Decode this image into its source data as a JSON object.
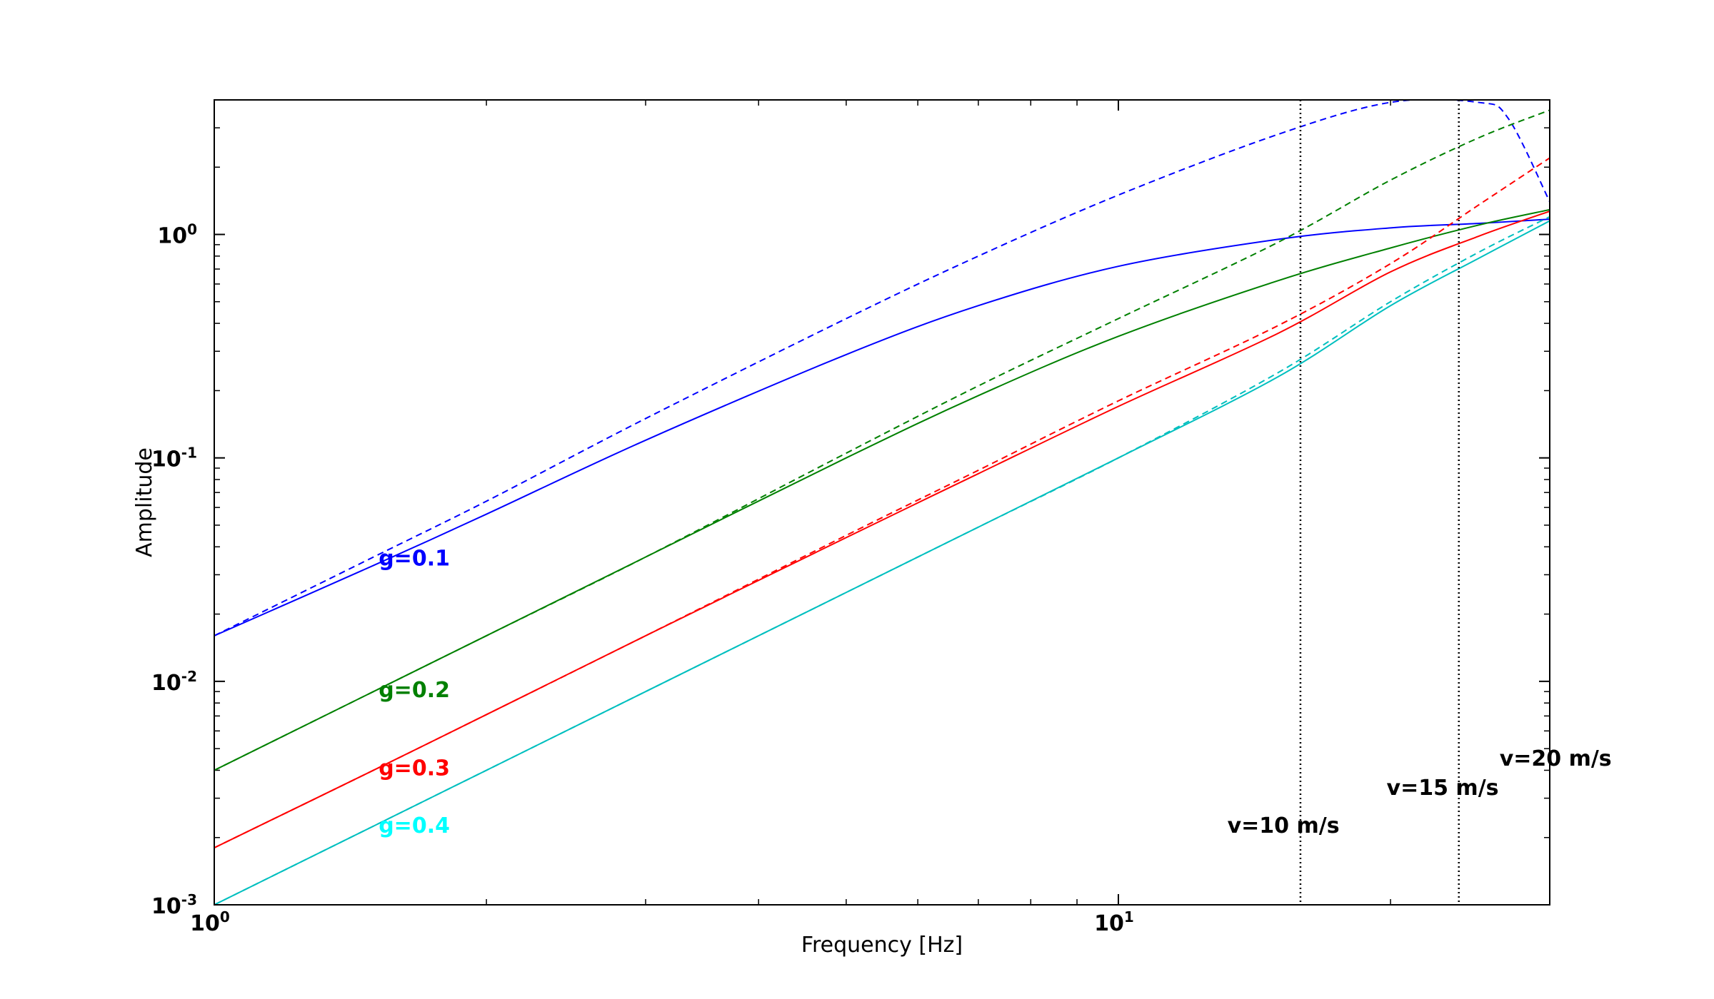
{
  "chart_data": {
    "type": "line",
    "title": "",
    "xlabel": "Frequency [Hz]",
    "ylabel": "Amplitude",
    "xscale": "log",
    "yscale": "log",
    "xlim": [
      1,
      30
    ],
    "ylim": [
      0.001,
      4
    ],
    "grid": false,
    "legend": "none",
    "x_ticks": [
      {
        "value": 1,
        "base": "10",
        "exp": "0"
      },
      {
        "value": 10,
        "base": "10",
        "exp": "1"
      }
    ],
    "y_ticks": [
      {
        "value": 0.001,
        "base": "10",
        "exp": "-3"
      },
      {
        "value": 0.01,
        "base": "10",
        "exp": "-2"
      },
      {
        "value": 0.1,
        "base": "10",
        "exp": "-1"
      },
      {
        "value": 1,
        "base": "10",
        "exp": "0"
      }
    ],
    "series": [
      {
        "label": "g=0.1",
        "color": "#0000ff",
        "label_at": [
          1.52,
          0.033
        ],
        "solid": {
          "x": [
            1,
            1.5,
            2,
            3,
            5,
            7,
            10,
            15,
            20,
            25,
            30
          ],
          "y": [
            0.016,
            0.033,
            0.056,
            0.12,
            0.29,
            0.48,
            0.72,
            0.95,
            1.07,
            1.12,
            1.17
          ]
        },
        "dashed": {
          "x": [
            1,
            1.5,
            2,
            3,
            5,
            7,
            10,
            15,
            20,
            25,
            27,
            30
          ],
          "y": [
            0.016,
            0.036,
            0.064,
            0.15,
            0.42,
            0.8,
            1.5,
            2.8,
            3.9,
            3.9,
            3.3,
            1.4
          ]
        }
      },
      {
        "label": "g=0.2",
        "color": "#008000",
        "label_at": [
          1.52,
          0.0085
        ],
        "solid": {
          "x": [
            1,
            1.5,
            2,
            3,
            5,
            7,
            10,
            15,
            20,
            25,
            30
          ],
          "y": [
            0.004,
            0.009,
            0.016,
            0.036,
            0.1,
            0.19,
            0.35,
            0.62,
            0.87,
            1.1,
            1.29
          ]
        },
        "dashed": {
          "x": [
            1,
            1.5,
            2,
            3,
            5,
            7,
            10,
            15,
            20,
            25,
            30
          ],
          "y": [
            0.004,
            0.009,
            0.016,
            0.036,
            0.105,
            0.21,
            0.42,
            0.92,
            1.75,
            2.7,
            3.6
          ]
        }
      },
      {
        "label": "g=0.3",
        "color": "#ff0000",
        "label_at": [
          1.52,
          0.0038
        ],
        "solid": {
          "x": [
            1,
            1.5,
            2,
            3,
            5,
            7,
            10,
            15,
            20,
            25,
            30
          ],
          "y": [
            0.0018,
            0.004,
            0.0071,
            0.016,
            0.044,
            0.085,
            0.17,
            0.36,
            0.68,
            0.98,
            1.27
          ]
        },
        "dashed": {
          "x": [
            1,
            1.5,
            2,
            3,
            5,
            7,
            10,
            15,
            20,
            25,
            30
          ],
          "y": [
            0.0018,
            0.004,
            0.0071,
            0.016,
            0.045,
            0.088,
            0.18,
            0.39,
            0.74,
            1.35,
            2.2
          ]
        }
      },
      {
        "label": "g=0.4",
        "color": "#00bfbf",
        "label_color": "#00ffff",
        "label_at": [
          1.52,
          0.0021
        ],
        "solid": {
          "x": [
            1,
            1.5,
            2,
            3,
            5,
            7,
            10,
            15,
            20,
            25,
            30
          ],
          "y": [
            0.001,
            0.00225,
            0.004,
            0.009,
            0.025,
            0.049,
            0.1,
            0.23,
            0.48,
            0.78,
            1.15
          ]
        },
        "dashed": {
          "x": [
            1,
            1.5,
            2,
            3,
            5,
            7,
            10,
            15,
            20,
            25,
            30
          ],
          "y": [
            0.001,
            0.00225,
            0.004,
            0.009,
            0.025,
            0.049,
            0.1,
            0.24,
            0.5,
            0.83,
            1.2
          ]
        }
      }
    ],
    "vlines": [
      {
        "x": 15.9,
        "label": "v=10 m/s",
        "label_at": [
          13.2,
          0.0021
        ]
      },
      {
        "x": 23.8,
        "label": "v=15 m/s",
        "label_at": [
          19.8,
          0.0031
        ]
      },
      {
        "x": 31.8,
        "label": "v=20 m/s",
        "label_at": [
          26.4,
          0.0042
        ]
      }
    ]
  }
}
